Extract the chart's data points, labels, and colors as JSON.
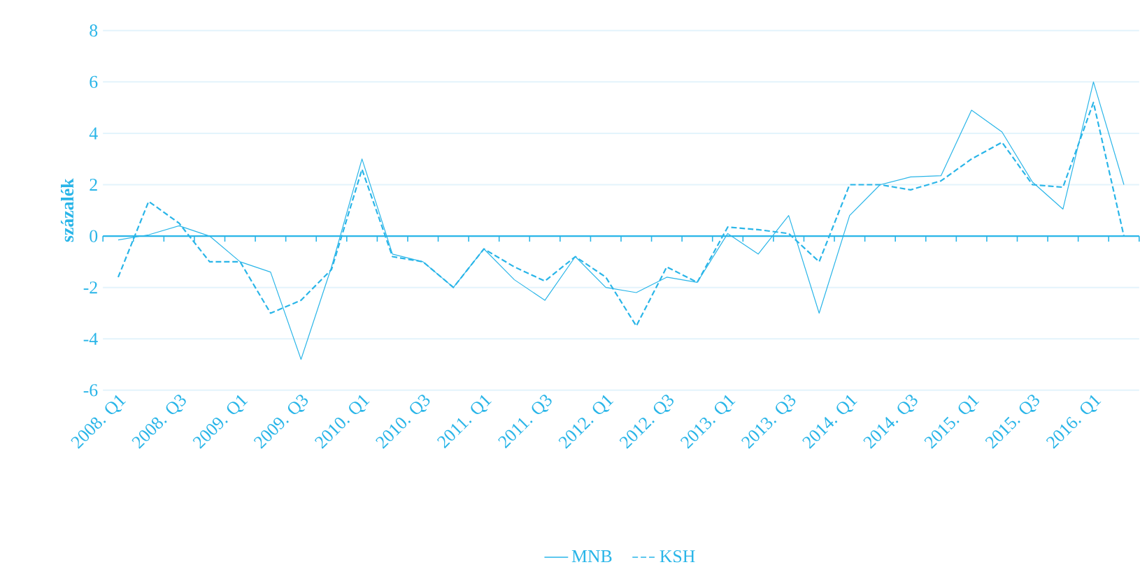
{
  "chart_data": {
    "type": "line",
    "ylabel": "százalék",
    "categories": [
      "2008. Q1",
      null,
      "2008. Q3",
      null,
      "2009. Q1",
      null,
      "2009. Q3",
      null,
      "2010. Q1",
      null,
      "2010. Q3",
      null,
      "2011. Q1",
      null,
      "2011. Q3",
      null,
      "2012. Q1",
      null,
      "2012. Q3",
      null,
      "2013. Q1",
      null,
      "2013. Q3",
      null,
      "2014. Q1",
      null,
      "2014. Q3",
      null,
      "2015. Q1",
      null,
      "2015. Q3",
      null,
      "2016. Q1",
      null
    ],
    "series": [
      {
        "name": "MNB",
        "color": "#29b5e8",
        "line_style": "solid",
        "values": [
          -0.15,
          0.05,
          0.4,
          0.0,
          -1.0,
          -1.4,
          -4.8,
          -1.2,
          3.0,
          -0.7,
          -1.0,
          -2.0,
          -0.5,
          -1.7,
          -2.5,
          -0.8,
          -2.0,
          -2.2,
          -1.6,
          -1.8,
          0.1,
          -0.7,
          0.8,
          -3.0,
          0.8,
          2.0,
          2.3,
          2.35,
          4.9,
          4.05,
          2.1,
          1.05,
          6.0,
          2.0
        ]
      },
      {
        "name": "KSH",
        "color": "#29b5e8",
        "line_style": "dashed",
        "values": [
          -1.6,
          1.35,
          0.5,
          -1.0,
          -1.0,
          -3.0,
          -2.5,
          -1.3,
          2.6,
          -0.8,
          -1.0,
          -2.0,
          -0.5,
          -1.2,
          -1.75,
          -0.8,
          -1.6,
          -3.5,
          -1.2,
          -1.8,
          0.35,
          0.25,
          0.1,
          -1.0,
          2.0,
          2.0,
          1.8,
          2.15,
          3.0,
          3.65,
          2.0,
          1.9,
          5.2,
          0.0
        ]
      }
    ],
    "ylim": [
      -6,
      8
    ],
    "yticks": [
      -6,
      -4,
      -2,
      0,
      2,
      4,
      6,
      8
    ],
    "ref_lines": [
      {
        "axis": "y",
        "value": 0,
        "color": "#29b5e8"
      }
    ],
    "grid": "y",
    "legend": "bottom",
    "marker": "none"
  }
}
